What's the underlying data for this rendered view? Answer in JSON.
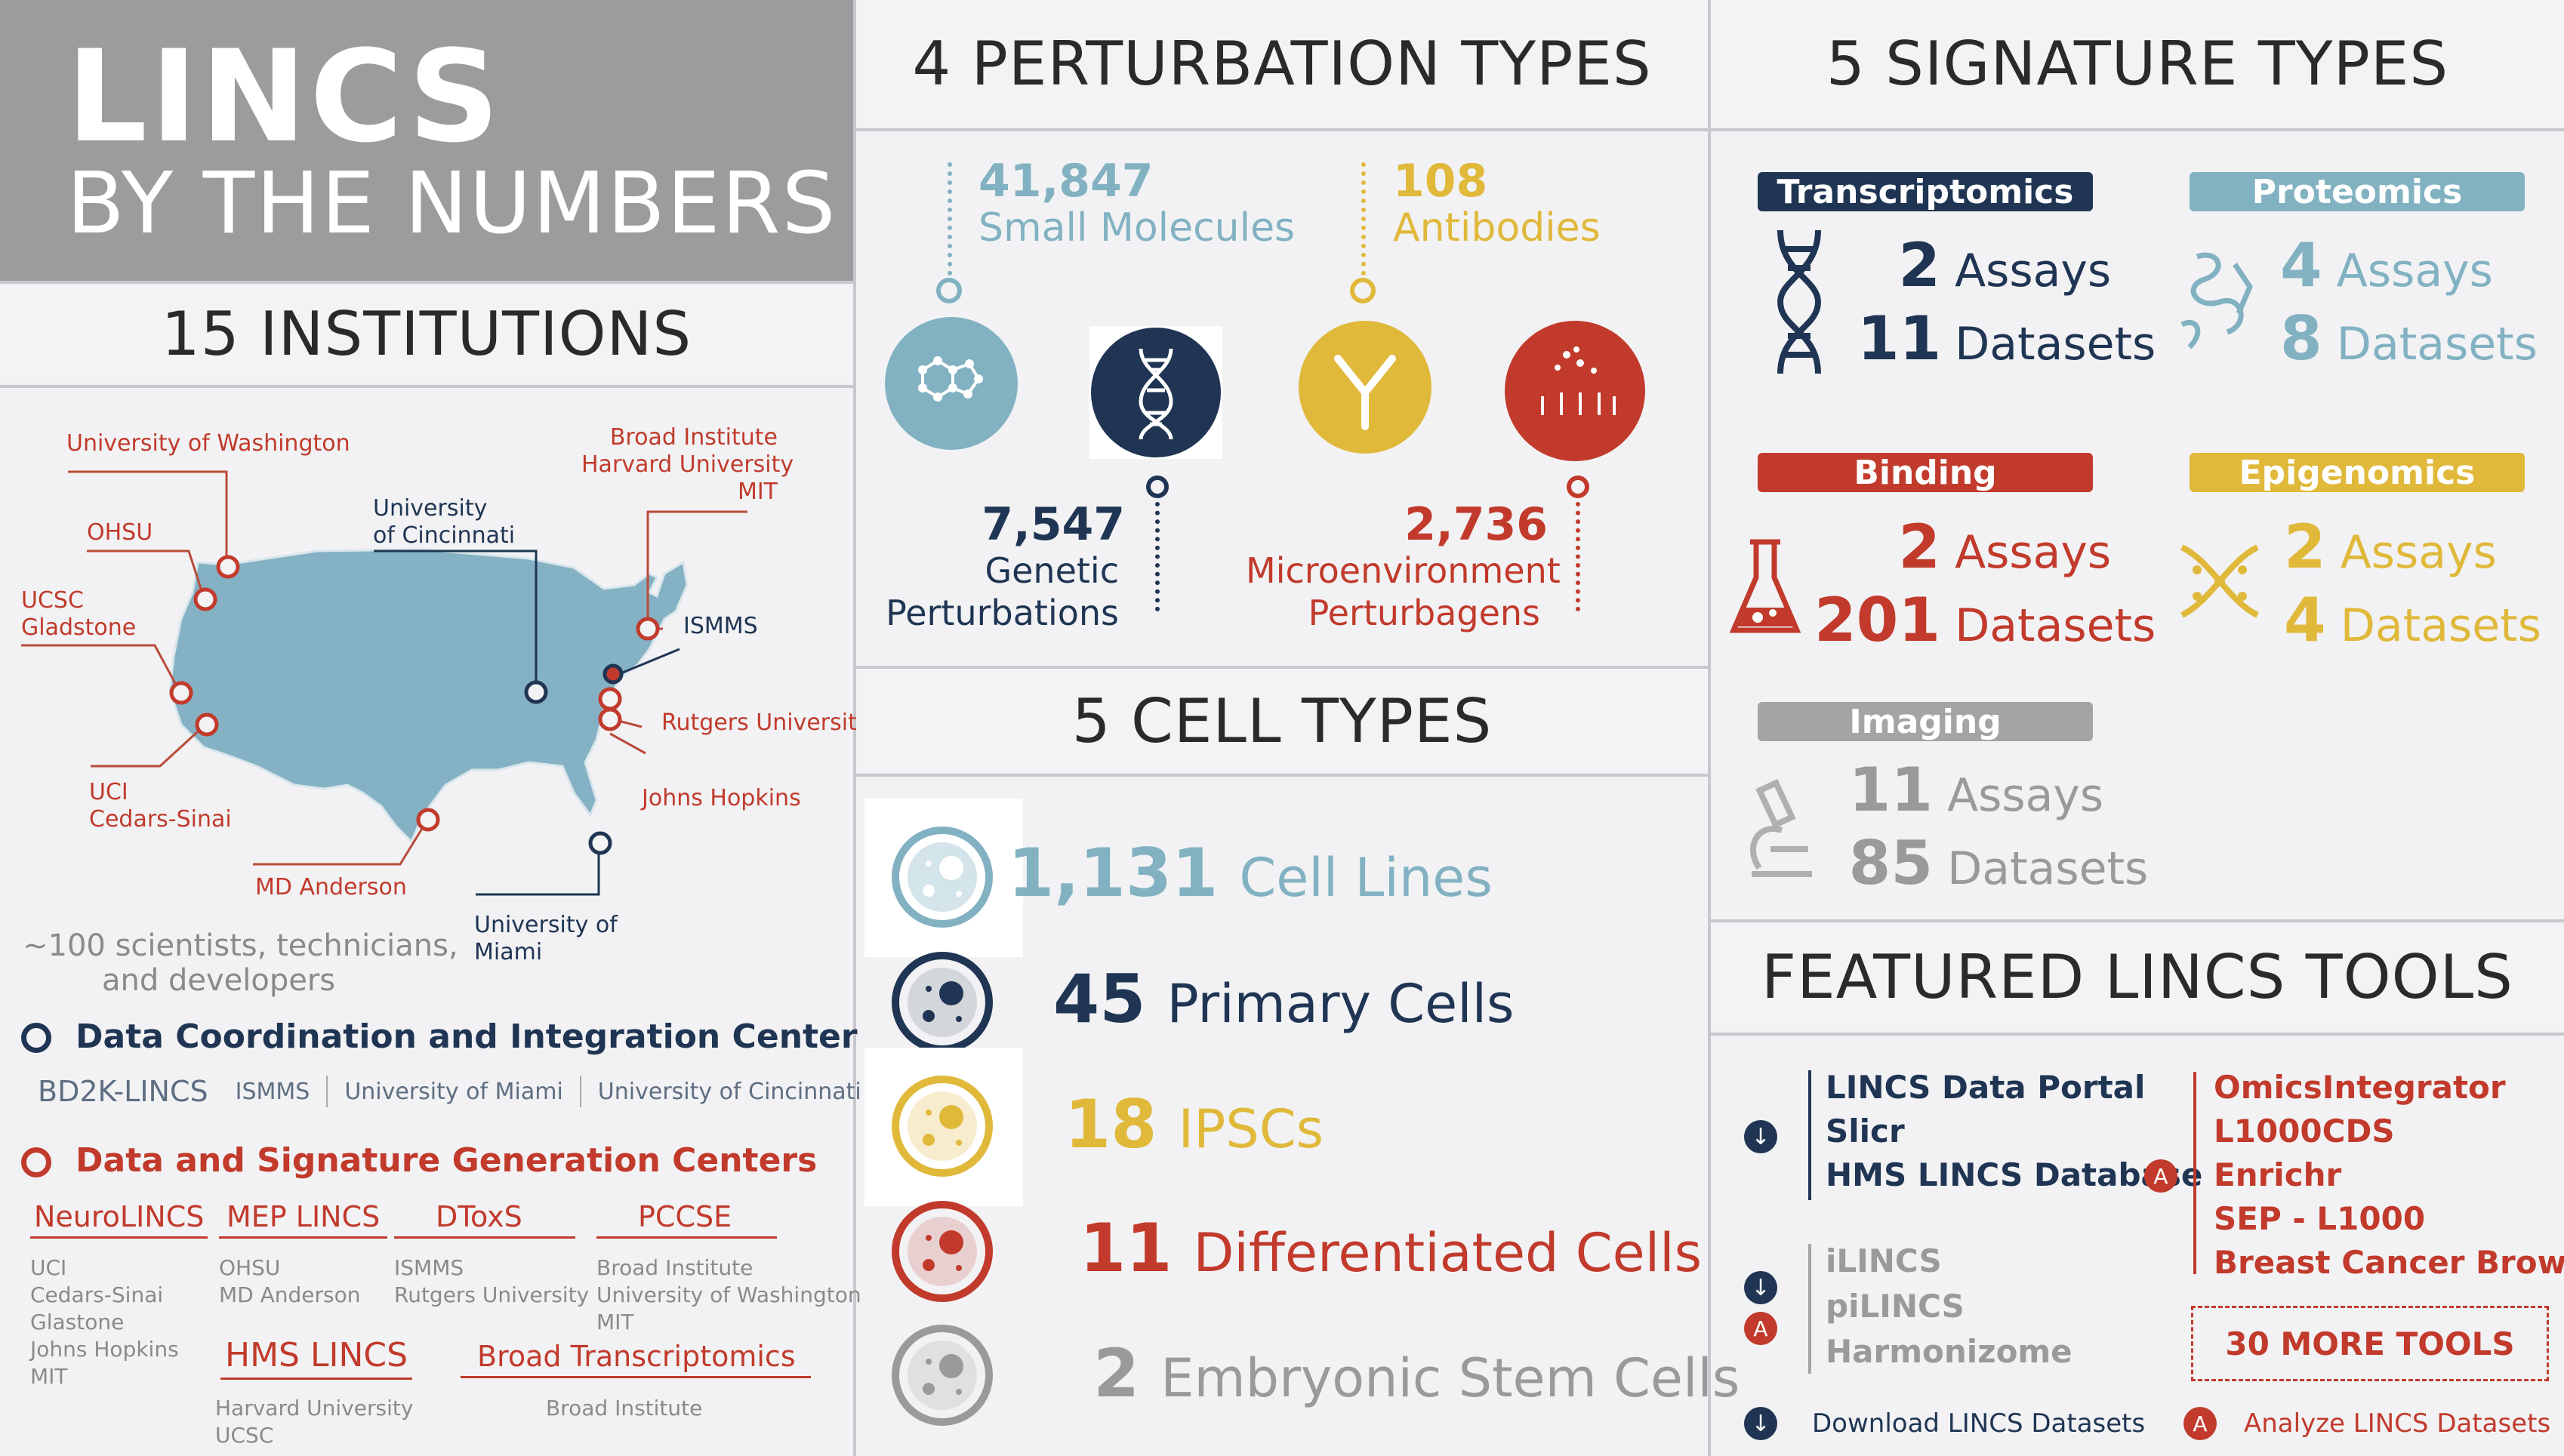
{
  "title": {
    "line1": "LINCS",
    "line2": "BY THE NUMBERS"
  },
  "institutions": {
    "header": "15 INSTITUTIONS",
    "labels": {
      "uw": "University of Washington",
      "broad": [
        "Broad Institute",
        "Harvard University",
        "MIT"
      ],
      "ohsu": "OHSU",
      "cinc": [
        "University",
        "of Cincinnati"
      ],
      "ucsc": [
        "UCSC",
        "Gladstone"
      ],
      "ismms": "ISMMS",
      "rutgers": "Rutgers University",
      "jhu": "Johns Hopkins",
      "uci": [
        "UCI",
        "Cedars-Sinai"
      ],
      "mda": "MD Anderson",
      "miami": [
        "University of",
        "Miami"
      ]
    },
    "scientists": [
      "~100 scientists, technicians,",
      "and developers"
    ],
    "dcic": {
      "title": "Data Coordination and Integration Center",
      "members": [
        "BD2K-LINCS",
        "ISMMS",
        "University of Miami",
        "University of Cincinnati"
      ]
    },
    "dsgc": {
      "title": "Data and Signature Generation Centers",
      "centers": [
        {
          "name": "NeuroLINCS",
          "members": [
            "UCI",
            "Cedars-Sinai",
            "Glastone",
            "Johns Hopkins",
            "MIT"
          ]
        },
        {
          "name": "MEP LINCS",
          "members": [
            "OHSU",
            "MD Anderson"
          ]
        },
        {
          "name": "DToxS",
          "members": [
            "ISMMS",
            "Rutgers University"
          ]
        },
        {
          "name": "PCCSE",
          "members": [
            "Broad Institute",
            "University of Washington",
            "MIT"
          ]
        },
        {
          "name": "HMS LINCS",
          "members": [
            "Harvard University",
            "UCSC"
          ]
        },
        {
          "name": "Broad Transcriptomics",
          "members": [
            "Broad Institute"
          ]
        }
      ]
    }
  },
  "perturbations": {
    "header": "4 PERTURBATION TYPES",
    "items": [
      {
        "value": "41,847",
        "label": "Small Molecules"
      },
      {
        "value": "108",
        "label": "Antibodies"
      },
      {
        "value": "7,547",
        "label": [
          "Genetic",
          "Perturbations"
        ]
      },
      {
        "value": "2,736",
        "label": [
          "Microenvironment",
          "Perturbagens"
        ]
      }
    ]
  },
  "cells": {
    "header": "5 CELL TYPES",
    "items": [
      {
        "value": "1,131",
        "label": "Cell Lines"
      },
      {
        "value": "45",
        "label": "Primary Cells"
      },
      {
        "value": "18",
        "label": "IPSCs"
      },
      {
        "value": "11",
        "label": "Differentiated Cells"
      },
      {
        "value": "2",
        "label": "Embryonic Stem Cells"
      }
    ]
  },
  "signatures": {
    "header": "5 SIGNATURE TYPES",
    "items": [
      {
        "name": "Transcriptomics",
        "assays": "2",
        "datasets": "11"
      },
      {
        "name": "Proteomics",
        "assays": "4",
        "datasets": "8"
      },
      {
        "name": "Binding",
        "assays": "2",
        "datasets": "201"
      },
      {
        "name": "Epigenomics",
        "assays": "2",
        "datasets": "4"
      },
      {
        "name": "Imaging",
        "assays": "11",
        "datasets": "85"
      }
    ],
    "assays_word": "Assays",
    "datasets_word": "Datasets"
  },
  "tools": {
    "header": "FEATURED LINCS TOOLS",
    "download_group": [
      "LINCS Data Portal",
      "Slicr",
      "HMS LINCS Database"
    ],
    "grey_group": [
      "iLINCS",
      "piLINCS",
      "Harmonizome"
    ],
    "analyze_group": [
      "OmicsIntegrator",
      "L1000CDS",
      "Enrichr",
      "SEP - L1000",
      "Breast Cancer Browser"
    ],
    "more_button": "30 MORE TOOLS",
    "legend_download": "Download LINCS Datasets",
    "legend_analyze": "Analyze LINCS Datasets",
    "badge_a": "A"
  },
  "colors": {
    "navy": "#1f3553",
    "red": "#c13a2b",
    "blue": "#82b2c2",
    "gold": "#e0b93b",
    "grey": "#9a9a9c"
  }
}
